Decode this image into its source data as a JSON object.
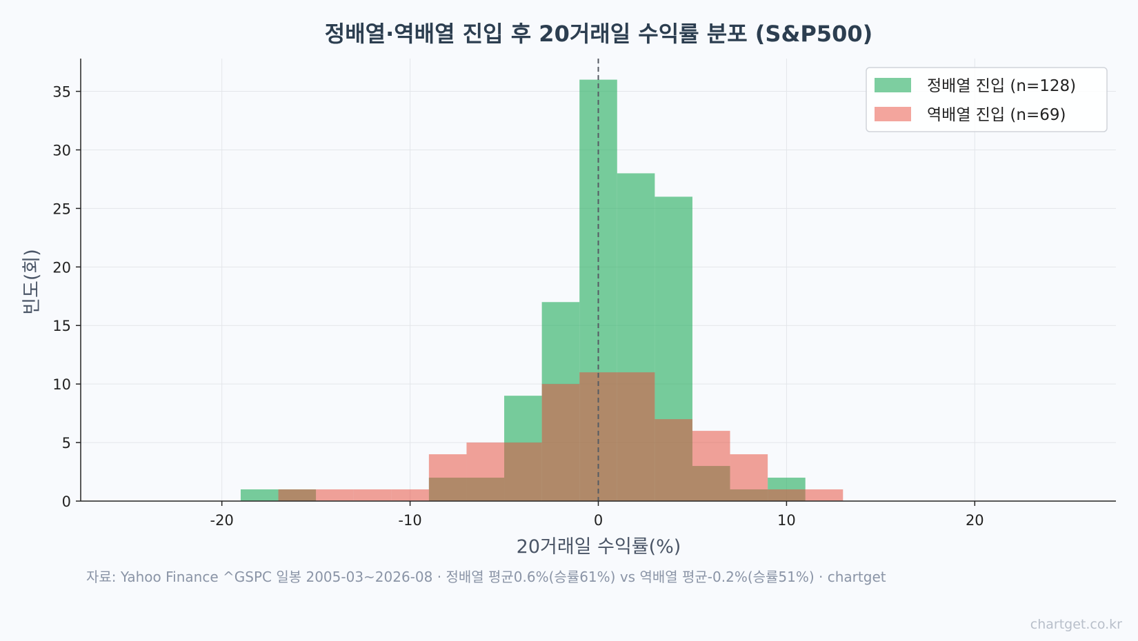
{
  "chart_data": {
    "type": "bar",
    "title": "정배열·역배열 진입 후 20거래일 수익률 분포 (S&P500)",
    "xlabel": "20거래일 수익률(%)",
    "ylabel": "빈도(회)",
    "xlim": [
      -27.5,
      27.5
    ],
    "ylim": [
      0,
      37.8
    ],
    "x_ticks": [
      -20,
      -10,
      0,
      10,
      20
    ],
    "x_tick_labels": [
      "-20",
      "-10",
      "0",
      "10",
      "20"
    ],
    "y_ticks": [
      0,
      5,
      10,
      15,
      20,
      25,
      30,
      35
    ],
    "y_tick_labels": [
      "0",
      "5",
      "10",
      "15",
      "20",
      "25",
      "30",
      "35"
    ],
    "grid": true,
    "legend_position": "top-right",
    "reference_line": {
      "x": 0,
      "style": "dashed"
    },
    "bin_edges": [
      -19,
      -17,
      -15,
      -13,
      -11,
      -9,
      -7,
      -5,
      -3,
      -1,
      1,
      3,
      5,
      7,
      9,
      11,
      13
    ],
    "series": [
      {
        "name": "정배열 진입 (n=128)",
        "color": "#27ae60",
        "values": [
          1,
          1,
          0,
          0,
          0,
          2,
          2,
          9,
          17,
          36,
          28,
          26,
          3,
          1,
          2,
          0
        ]
      },
      {
        "name": "역배열 진입 (n=69)",
        "color": "#e74c3c",
        "values": [
          0,
          1,
          1,
          1,
          1,
          4,
          5,
          5,
          10,
          11,
          11,
          7,
          6,
          4,
          1,
          1
        ]
      }
    ]
  },
  "source_text": "자료: Yahoo Finance ^GSPC 일봉 2005-03~2026-08 · 정배열 평균0.6%(승률61%) vs 역배열 평균-0.2%(승률51%) · chartget",
  "watermark": "chartget.co.kr"
}
